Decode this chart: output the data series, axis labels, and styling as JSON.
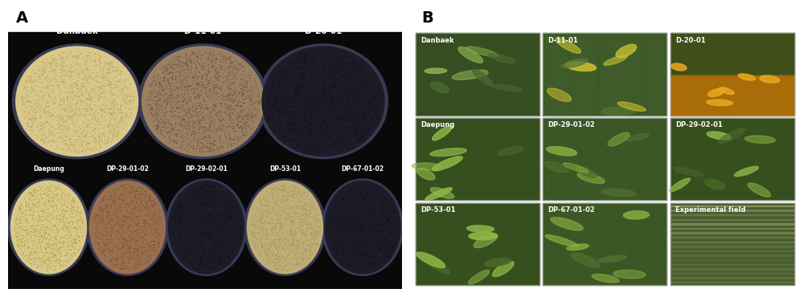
{
  "panel_A_label": "A",
  "panel_B_label": "B",
  "label_fontsize": 14,
  "label_color": "#000000",
  "label_weight": "bold",
  "top_row_labels": [
    "Danbaek",
    "D-11-01",
    "D-20-01"
  ],
  "bottom_row_labels": [
    "Daepung",
    "DP-29-01-02",
    "DP-29-02-01",
    "DP-53-01",
    "DP-67-01-02"
  ],
  "seed_colors_top": [
    "#d8c98a",
    "#9a8060",
    "#1c1c28"
  ],
  "seed_colors_bottom": [
    "#d8c98a",
    "#9a7050",
    "#1c1c28",
    "#c0ae78",
    "#1c1c28"
  ],
  "seed_dot_colors_top": [
    "#b8a060",
    "#6a5040",
    "#101018"
  ],
  "seed_dot_colors_bottom": [
    "#b0983a",
    "#7a5035",
    "#101018",
    "#a09050",
    "#101018"
  ],
  "grid_B_labels": [
    [
      "Danbaek",
      "D-11-01",
      "D-20-01"
    ],
    [
      "Daepung",
      "DP-29-01-02",
      "DP-29-02-01"
    ],
    [
      "DP-53-01",
      "DP-67-01-02",
      "Experimental field"
    ]
  ],
  "grid_B_base_colors": [
    [
      "#3a5228",
      "#4a6030",
      "#8a6010"
    ],
    [
      "#3a5228",
      "#4a5e2a",
      "#3a5228"
    ],
    [
      "#3a5228",
      "#3a5228",
      "#6a8050"
    ]
  ],
  "grid_B_accent_colors": [
    [
      "#6a9040",
      "#7aaa50",
      "#c89020"
    ],
    [
      "#6a9040",
      "#7aaa50",
      "#6a9040"
    ],
    [
      "#6a9040",
      "#6a9040",
      "#90b070"
    ]
  ],
  "fig_bg": "#ffffff"
}
